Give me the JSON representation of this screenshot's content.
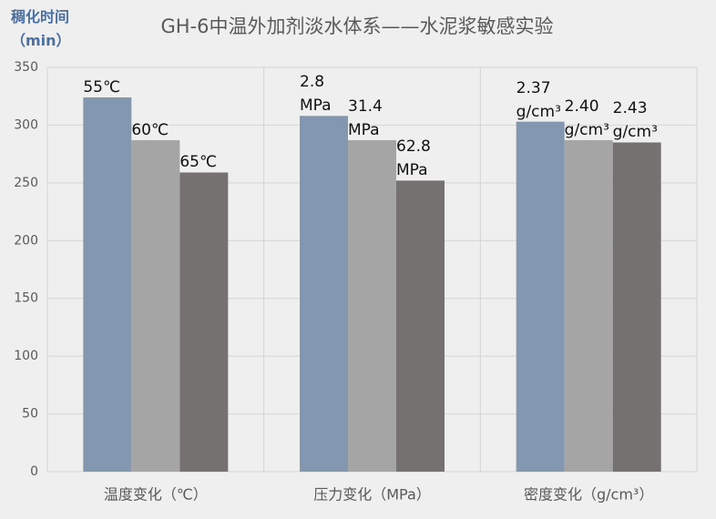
{
  "chart_data": {
    "type": "bar",
    "title": "GH-6中温外加剂淡水体系——水泥浆敏感实验",
    "y_label": "稠化时间（min）",
    "categories": [
      "温度变化（℃）",
      "压力变化（MPa）",
      "密度变化（g/cm³）"
    ],
    "series": [
      {
        "color": "#8497b0",
        "values": [
          324,
          308,
          303
        ],
        "bar_labels": [
          "55℃",
          "2.8 MPa",
          "2.37 g/cm³"
        ]
      },
      {
        "color": "#a5a5a5",
        "values": [
          287,
          287,
          287
        ],
        "bar_labels": [
          "60℃",
          "31.4 MPa",
          "2.40 g/cm³"
        ]
      },
      {
        "color": "#767171",
        "values": [
          259,
          252,
          285
        ],
        "bar_labels": [
          "65℃",
          "62.8 MPa",
          "2.43 g/cm³"
        ]
      }
    ],
    "ylim": [
      0,
      350
    ],
    "yticks": [
      0,
      50,
      100,
      150,
      200,
      250,
      300,
      350
    ],
    "grid": true
  }
}
